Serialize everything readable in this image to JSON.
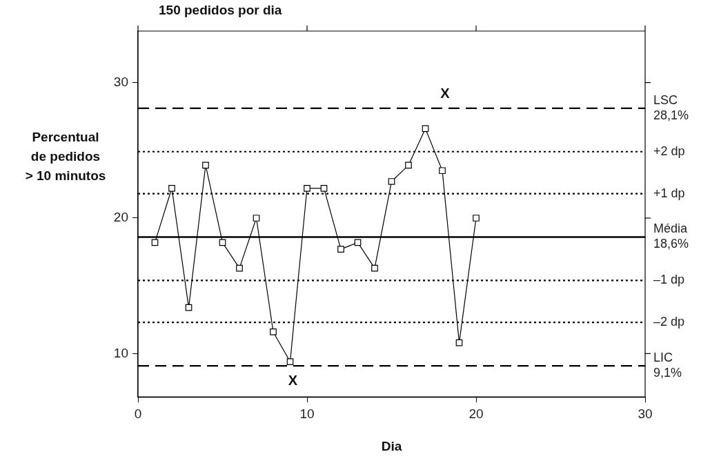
{
  "chart_data": {
    "type": "line",
    "title": "150 pedidos por dia",
    "xlabel": "Dia",
    "ylabel": "Percentual\nde pedidos\n> 10 minutos",
    "x": [
      1,
      2,
      3,
      4,
      5,
      6,
      7,
      8,
      9,
      10,
      11,
      12,
      13,
      14,
      15,
      16,
      17,
      18,
      19,
      20
    ],
    "series": [
      {
        "color": "#000000",
        "values": [
          18.2,
          22.2,
          13.4,
          23.9,
          18.2,
          16.3,
          20.0,
          11.6,
          9.4,
          22.2,
          22.2,
          17.7,
          18.2,
          16.3,
          22.7,
          23.9,
          26.6,
          23.5,
          10.8,
          20.0
        ]
      }
    ],
    "xlim": [
      0,
      30
    ],
    "xticks": [
      0,
      10,
      20,
      30
    ],
    "ylim": [
      6.8,
      33.8
    ],
    "yticks": [
      10,
      20,
      30
    ],
    "marker": "square",
    "legend": false,
    "ref_lines": [
      {
        "axis": "y",
        "value": 28.1,
        "label": "LSC\n28,1%",
        "line_style": "dashed",
        "color": "#000000"
      },
      {
        "axis": "y",
        "value": 24.9,
        "label": "+2 dp",
        "line_style": "dotted",
        "color": "#000000"
      },
      {
        "axis": "y",
        "value": 21.8,
        "label": "+1 dp",
        "line_style": "dotted",
        "color": "#000000"
      },
      {
        "axis": "y",
        "value": 18.6,
        "label": "Média\n18,6%",
        "line_style": "solid",
        "color": "#000000"
      },
      {
        "axis": "y",
        "value": 15.4,
        "label": "–1 dp",
        "line_style": "dotted",
        "color": "#000000"
      },
      {
        "axis": "y",
        "value": 12.3,
        "label": "–2 dp",
        "line_style": "dotted",
        "color": "#000000"
      },
      {
        "axis": "y",
        "value": 9.1,
        "label": "LIC\n9,1%",
        "line_style": "dashed",
        "color": "#000000"
      }
    ],
    "annotations": [
      {
        "text": "X",
        "x": 18,
        "y": 28.1
      },
      {
        "text": "X",
        "x": 9,
        "y": 9.1
      }
    ]
  }
}
